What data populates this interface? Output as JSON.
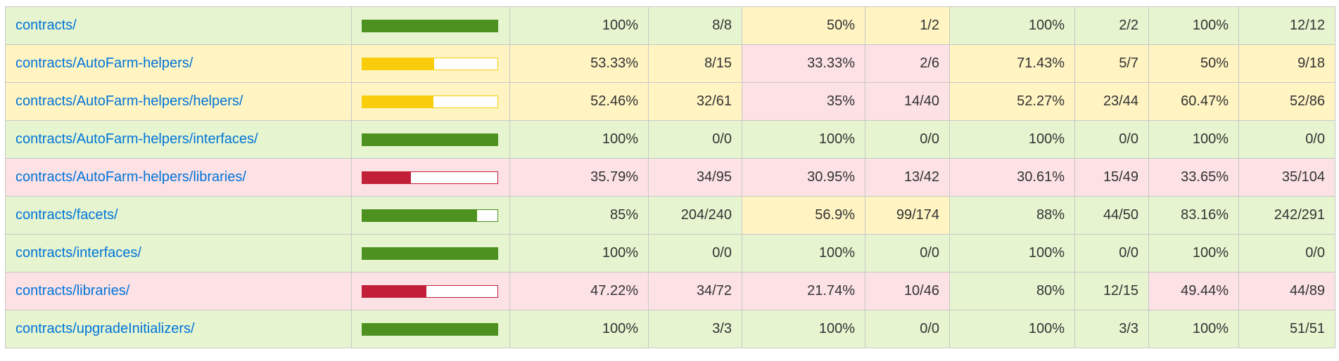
{
  "colors": {
    "high_bg": "#e6f5d0",
    "medium_bg": "#fff4c2",
    "low_bg": "#fce1e5",
    "high_bar": "#4d9221",
    "medium_bar": "#f9cd0b",
    "low_bar": "#c21f39",
    "link": "#0074d9"
  },
  "rows": [
    {
      "file": "contracts/",
      "level": "high",
      "coverage_percent": 100,
      "statements": {
        "pct": "100%",
        "abs": "8/8",
        "level": "high"
      },
      "branches": {
        "pct": "50%",
        "abs": "1/2",
        "level": "medium"
      },
      "functions": {
        "pct": "100%",
        "abs": "2/2",
        "level": "high"
      },
      "lines": {
        "pct": "100%",
        "abs": "12/12",
        "level": "high"
      }
    },
    {
      "file": "contracts/AutoFarm-helpers/",
      "level": "medium",
      "coverage_percent": 53.33,
      "statements": {
        "pct": "53.33%",
        "abs": "8/15",
        "level": "medium"
      },
      "branches": {
        "pct": "33.33%",
        "abs": "2/6",
        "level": "low"
      },
      "functions": {
        "pct": "71.43%",
        "abs": "5/7",
        "level": "medium"
      },
      "lines": {
        "pct": "50%",
        "abs": "9/18",
        "level": "medium"
      }
    },
    {
      "file": "contracts/AutoFarm-helpers/helpers/",
      "level": "medium",
      "coverage_percent": 52.46,
      "statements": {
        "pct": "52.46%",
        "abs": "32/61",
        "level": "medium"
      },
      "branches": {
        "pct": "35%",
        "abs": "14/40",
        "level": "low"
      },
      "functions": {
        "pct": "52.27%",
        "abs": "23/44",
        "level": "medium"
      },
      "lines": {
        "pct": "60.47%",
        "abs": "52/86",
        "level": "medium"
      }
    },
    {
      "file": "contracts/AutoFarm-helpers/interfaces/",
      "level": "high",
      "coverage_percent": 100,
      "statements": {
        "pct": "100%",
        "abs": "0/0",
        "level": "high"
      },
      "branches": {
        "pct": "100%",
        "abs": "0/0",
        "level": "high"
      },
      "functions": {
        "pct": "100%",
        "abs": "0/0",
        "level": "high"
      },
      "lines": {
        "pct": "100%",
        "abs": "0/0",
        "level": "high"
      }
    },
    {
      "file": "contracts/AutoFarm-helpers/libraries/",
      "level": "low",
      "coverage_percent": 35.79,
      "statements": {
        "pct": "35.79%",
        "abs": "34/95",
        "level": "low"
      },
      "branches": {
        "pct": "30.95%",
        "abs": "13/42",
        "level": "low"
      },
      "functions": {
        "pct": "30.61%",
        "abs": "15/49",
        "level": "low"
      },
      "lines": {
        "pct": "33.65%",
        "abs": "35/104",
        "level": "low"
      }
    },
    {
      "file": "contracts/facets/",
      "level": "high",
      "coverage_percent": 85,
      "statements": {
        "pct": "85%",
        "abs": "204/240",
        "level": "high"
      },
      "branches": {
        "pct": "56.9%",
        "abs": "99/174",
        "level": "medium"
      },
      "functions": {
        "pct": "88%",
        "abs": "44/50",
        "level": "high"
      },
      "lines": {
        "pct": "83.16%",
        "abs": "242/291",
        "level": "high"
      }
    },
    {
      "file": "contracts/interfaces/",
      "level": "high",
      "coverage_percent": 100,
      "statements": {
        "pct": "100%",
        "abs": "0/0",
        "level": "high"
      },
      "branches": {
        "pct": "100%",
        "abs": "0/0",
        "level": "high"
      },
      "functions": {
        "pct": "100%",
        "abs": "0/0",
        "level": "high"
      },
      "lines": {
        "pct": "100%",
        "abs": "0/0",
        "level": "high"
      }
    },
    {
      "file": "contracts/libraries/",
      "level": "low",
      "coverage_percent": 47.22,
      "statements": {
        "pct": "47.22%",
        "abs": "34/72",
        "level": "low"
      },
      "branches": {
        "pct": "21.74%",
        "abs": "10/46",
        "level": "low"
      },
      "functions": {
        "pct": "80%",
        "abs": "12/15",
        "level": "high"
      },
      "lines": {
        "pct": "49.44%",
        "abs": "44/89",
        "level": "low"
      }
    },
    {
      "file": "contracts/upgradeInitializers/",
      "level": "high",
      "coverage_percent": 100,
      "statements": {
        "pct": "100%",
        "abs": "3/3",
        "level": "high"
      },
      "branches": {
        "pct": "100%",
        "abs": "0/0",
        "level": "high"
      },
      "functions": {
        "pct": "100%",
        "abs": "3/3",
        "level": "high"
      },
      "lines": {
        "pct": "100%",
        "abs": "51/51",
        "level": "high"
      }
    }
  ]
}
